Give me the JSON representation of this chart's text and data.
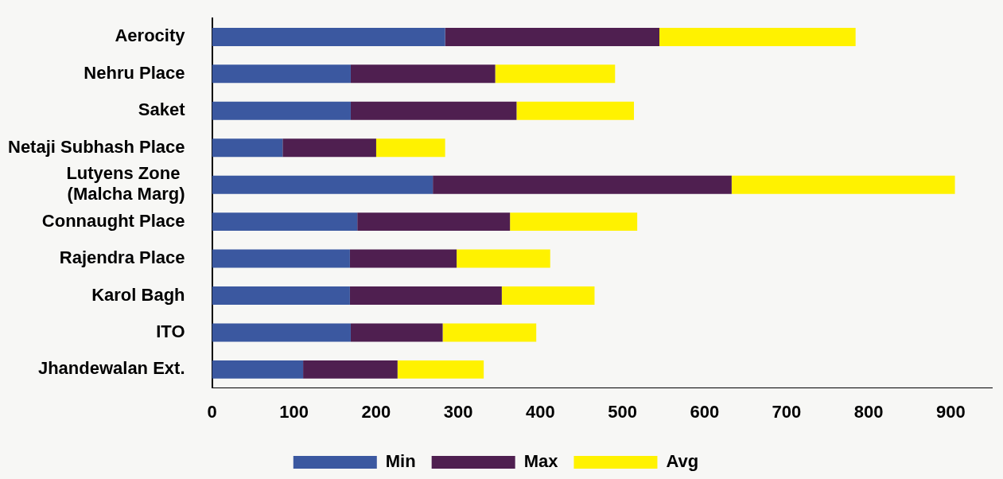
{
  "chart_data": {
    "type": "bar",
    "orientation": "horizontal",
    "stacked": true,
    "categories": [
      "Aerocity",
      "Nehru Place",
      "Saket",
      "Netaji Subhash Place",
      "Lutyens Zone  (Malcha Marg)",
      "Connaught Place",
      "Rajendra Place",
      "Karol Bagh",
      "ITO",
      "Jhandewalan Ext."
    ],
    "series": [
      {
        "name": "Min",
        "color": "#3b58a0",
        "values": [
          284,
          169,
          169,
          86,
          269,
          177,
          168,
          168,
          169,
          111
        ]
      },
      {
        "name": "Max",
        "color": "#4f1f50",
        "values": [
          261,
          176,
          202,
          114,
          364,
          186,
          130,
          185,
          112,
          115
        ]
      },
      {
        "name": "Avg",
        "color": "#fff200",
        "values": [
          239,
          146,
          143,
          84,
          272,
          155,
          114,
          113,
          114,
          105
        ]
      }
    ],
    "xlim": [
      0,
      950
    ],
    "xticks": [
      0,
      100,
      200,
      300,
      400,
      500,
      600,
      700,
      800,
      900
    ],
    "grid": false,
    "legend": "bottom"
  }
}
